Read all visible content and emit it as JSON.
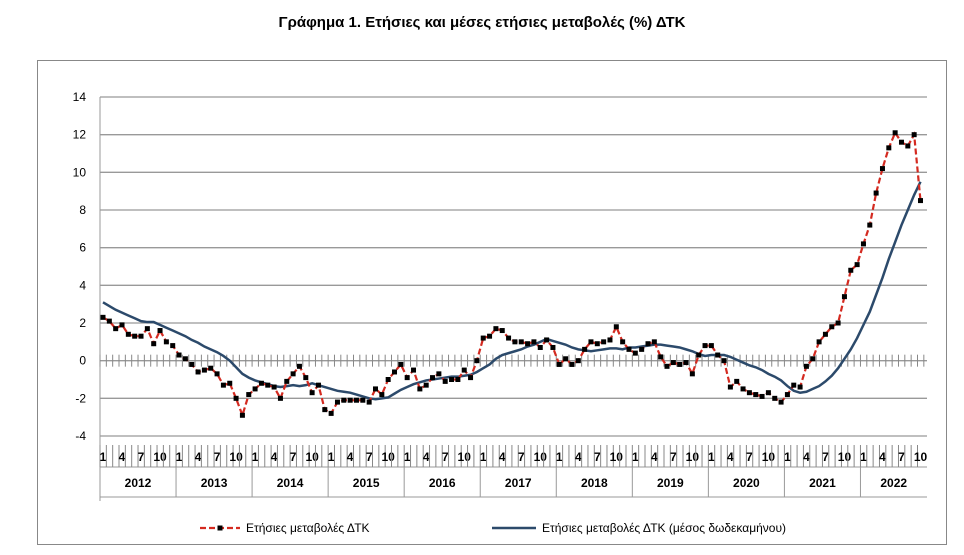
{
  "chart_data": {
    "type": "line",
    "title": "Γράφημα 1. Ετήσιες και μέσες ετήσιες μεταβολές (%) ΔΤΚ",
    "xlabel": "",
    "ylabel": "",
    "ylim": [
      -4,
      14
    ],
    "yticks": [
      -4,
      -2,
      0,
      2,
      4,
      6,
      8,
      10,
      12,
      14
    ],
    "grid": true,
    "legend_position": "bottom",
    "years": [
      "2012",
      "2013",
      "2014",
      "2015",
      "2016",
      "2017",
      "2018",
      "2019",
      "2020",
      "2021",
      "2022"
    ],
    "month_tick_labels": [
      "1",
      "4",
      "7",
      "10"
    ],
    "x_start": "2012-01",
    "x_end": "2022-10",
    "series": [
      {
        "name": "Ετήσιες μεταβολές ΔΤΚ",
        "color": "#d42a20",
        "style": "dashed-with-square-markers",
        "values": [
          2.3,
          2.1,
          1.7,
          1.9,
          1.4,
          1.3,
          1.3,
          1.7,
          0.9,
          1.6,
          1.0,
          0.8,
          0.3,
          0.1,
          -0.2,
          -0.6,
          -0.5,
          -0.4,
          -0.7,
          -1.3,
          -1.2,
          -2.0,
          -2.9,
          -1.8,
          -1.5,
          -1.2,
          -1.3,
          -1.4,
          -2.0,
          -1.1,
          -0.7,
          -0.3,
          -0.9,
          -1.7,
          -1.3,
          -2.6,
          -2.8,
          -2.2,
          -2.1,
          -2.1,
          -2.1,
          -2.1,
          -2.2,
          -1.5,
          -1.8,
          -1.0,
          -0.6,
          -0.2,
          -0.9,
          -0.5,
          -1.5,
          -1.3,
          -0.9,
          -0.7,
          -1.1,
          -1.0,
          -1.0,
          -0.5,
          -0.9,
          0.0,
          1.2,
          1.3,
          1.7,
          1.6,
          1.2,
          1.0,
          1.0,
          0.9,
          1.0,
          0.7,
          1.1,
          0.7,
          -0.2,
          0.1,
          -0.2,
          0.0,
          0.6,
          1.0,
          0.9,
          1.0,
          1.1,
          1.8,
          1.0,
          0.6,
          0.4,
          0.6,
          0.9,
          1.0,
          0.2,
          -0.3,
          -0.1,
          -0.2,
          -0.1,
          -0.7,
          0.3,
          0.8,
          0.8,
          0.3,
          0.0,
          -1.4,
          -1.1,
          -1.5,
          -1.7,
          -1.8,
          -1.9,
          -1.7,
          -2.0,
          -2.2,
          -1.8,
          -1.3,
          -1.4,
          -0.3,
          0.1,
          1.0,
          1.4,
          1.8,
          2.0,
          3.4,
          4.8,
          5.1,
          6.2,
          7.2,
          8.9,
          10.2,
          11.3,
          12.1,
          11.6,
          11.4,
          12.0,
          8.5
        ]
      },
      {
        "name": "Ετήσιες μεταβολές ΔΤΚ (μέσος δωδεκαμήνου)",
        "color": "#2c4a6b",
        "style": "solid",
        "values": [
          3.1,
          2.9,
          2.7,
          2.55,
          2.4,
          2.25,
          2.1,
          2.05,
          2.05,
          1.9,
          1.75,
          1.6,
          1.45,
          1.3,
          1.1,
          0.95,
          0.75,
          0.6,
          0.45,
          0.25,
          0.0,
          -0.35,
          -0.7,
          -0.9,
          -1.05,
          -1.15,
          -1.25,
          -1.35,
          -1.4,
          -1.35,
          -1.3,
          -1.35,
          -1.3,
          -1.2,
          -1.3,
          -1.4,
          -1.5,
          -1.6,
          -1.65,
          -1.7,
          -1.8,
          -1.9,
          -2.0,
          -2.05,
          -2.0,
          -1.95,
          -1.75,
          -1.55,
          -1.4,
          -1.25,
          -1.15,
          -1.05,
          -1.0,
          -0.95,
          -0.9,
          -0.85,
          -0.85,
          -0.8,
          -0.75,
          -0.6,
          -0.4,
          -0.2,
          0.1,
          0.3,
          0.4,
          0.5,
          0.6,
          0.75,
          0.85,
          1.0,
          1.15,
          1.05,
          0.95,
          0.85,
          0.7,
          0.6,
          0.55,
          0.5,
          0.55,
          0.6,
          0.65,
          0.65,
          0.6,
          0.7,
          0.7,
          0.75,
          0.8,
          0.85,
          0.85,
          0.8,
          0.75,
          0.7,
          0.6,
          0.5,
          0.35,
          0.25,
          0.3,
          0.3,
          0.3,
          0.2,
          0.05,
          -0.1,
          -0.25,
          -0.35,
          -0.5,
          -0.7,
          -0.85,
          -1.05,
          -1.35,
          -1.6,
          -1.7,
          -1.65,
          -1.5,
          -1.35,
          -1.1,
          -0.8,
          -0.4,
          0.1,
          0.6,
          1.2,
          1.9,
          2.6,
          3.5,
          4.4,
          5.4,
          6.3,
          7.2,
          8.0,
          8.8,
          9.5
        ]
      }
    ]
  }
}
